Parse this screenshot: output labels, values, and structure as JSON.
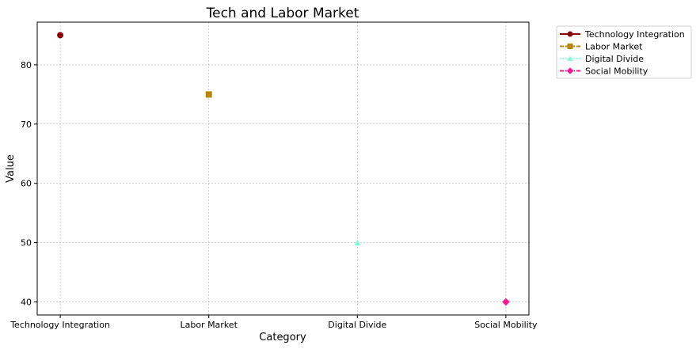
{
  "chart_data": {
    "type": "scatter",
    "title": "Tech and Labor Market",
    "xlabel": "Category",
    "ylabel": "Value",
    "categories": [
      "Technology Integration",
      "Labor Market",
      "Digital Divide",
      "Social Mobility"
    ],
    "ylim": [
      37.8,
      87.2
    ],
    "yticks": [
      40,
      50,
      60,
      70,
      80
    ],
    "grid": true,
    "legend_position": "outside-top-right",
    "series": [
      {
        "name": "Technology Integration",
        "category": "Technology Integration",
        "value": 85,
        "color": "#8b0000",
        "marker": "circle",
        "line_style": "solid"
      },
      {
        "name": "Labor Market",
        "category": "Labor Market",
        "value": 75,
        "color": "#b8860b",
        "marker": "square",
        "line_style": "dashed"
      },
      {
        "name": "Digital Divide",
        "category": "Digital Divide",
        "value": 50,
        "color": "#7fffd4",
        "marker": "triangle",
        "line_style": "dotted"
      },
      {
        "name": "Social Mobility",
        "category": "Social Mobility",
        "value": 40,
        "color": "#ff1493",
        "marker": "diamond",
        "line_style": "dashdot"
      }
    ]
  }
}
